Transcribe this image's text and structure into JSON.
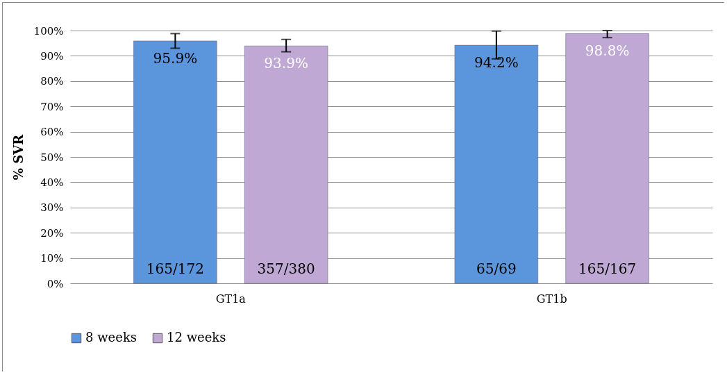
{
  "chart_data": {
    "type": "bar",
    "ylabel": "% SVR",
    "categories": [
      "GT1a",
      "GT1b"
    ],
    "series": [
      {
        "name": "8 weeks",
        "color": "#5b96dc",
        "values": [
          95.9,
          94.2
        ],
        "errors": [
          [
            93.0,
            98.8
          ],
          [
            88.8,
            99.8
          ]
        ],
        "value_labels": [
          "95.9%",
          "94.2%"
        ]
      },
      {
        "name": "12 weeks",
        "color": "#bfa9d4",
        "values": [
          93.9,
          98.8
        ],
        "errors": [
          [
            91.6,
            96.5
          ],
          [
            97.2,
            100
          ]
        ],
        "value_labels": [
          "93.9%",
          "98.8%"
        ]
      }
    ],
    "annotations": [
      "165/172",
      "357/380",
      "65/69",
      "165/167"
    ],
    "ylim": [
      0,
      100
    ],
    "yticks": [
      {
        "value": 0,
        "label": "0%"
      },
      {
        "value": 10,
        "label": "10%"
      },
      {
        "value": 20,
        "label": "20%"
      },
      {
        "value": 30,
        "label": "30%"
      },
      {
        "value": 40,
        "label": "40%"
      },
      {
        "value": 50,
        "label": "50%"
      },
      {
        "value": 60,
        "label": "60%"
      },
      {
        "value": 70,
        "label": "70%"
      },
      {
        "value": 80,
        "label": "80%"
      },
      {
        "value": 90,
        "label": "90%"
      },
      {
        "value": 100,
        "label": "100%"
      }
    ],
    "grid": "y",
    "legend": "bottom"
  }
}
